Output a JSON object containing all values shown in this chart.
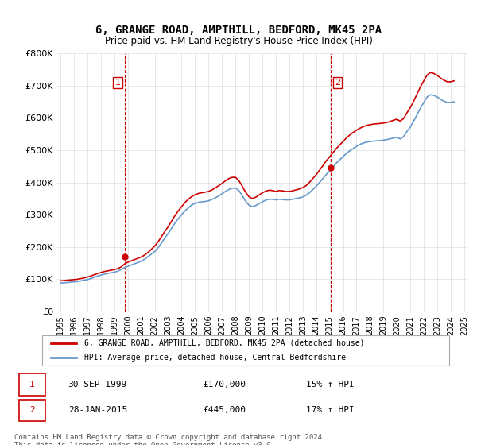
{
  "title": "6, GRANGE ROAD, AMPTHILL, BEDFORD, MK45 2PA",
  "subtitle": "Price paid vs. HM Land Registry's House Price Index (HPI)",
  "ylabel": "",
  "ylim": [
    0,
    800000
  ],
  "yticks": [
    0,
    100000,
    200000,
    300000,
    400000,
    500000,
    600000,
    700000,
    800000
  ],
  "ytick_labels": [
    "£0",
    "£100K",
    "£200K",
    "£300K",
    "£400K",
    "£500K",
    "£600K",
    "£700K",
    "£800K"
  ],
  "price_color": "#cc0000",
  "hpi_color": "#6699cc",
  "vline_color": "#cc0000",
  "background_color": "#ffffff",
  "grid_color": "#dddddd",
  "transaction1": {
    "date": "30-SEP-1999",
    "price": 170000,
    "label": "1",
    "hpi_pct": "15%"
  },
  "transaction2": {
    "date": "28-JAN-2015",
    "price": 445000,
    "label": "2",
    "hpi_pct": "17%"
  },
  "legend_label_price": "6, GRANGE ROAD, AMPTHILL, BEDFORD, MK45 2PA (detached house)",
  "legend_label_hpi": "HPI: Average price, detached house, Central Bedfordshire",
  "footer": "Contains HM Land Registry data © Crown copyright and database right 2024.\nThis data is licensed under the Open Government Licence v3.0.",
  "hpi_data": {
    "years": [
      1995.0,
      1995.25,
      1995.5,
      1995.75,
      1996.0,
      1996.25,
      1996.5,
      1996.75,
      1997.0,
      1997.25,
      1997.5,
      1997.75,
      1998.0,
      1998.25,
      1998.5,
      1998.75,
      1999.0,
      1999.25,
      1999.5,
      1999.75,
      2000.0,
      2000.25,
      2000.5,
      2000.75,
      2001.0,
      2001.25,
      2001.5,
      2001.75,
      2002.0,
      2002.25,
      2002.5,
      2002.75,
      2003.0,
      2003.25,
      2003.5,
      2003.75,
      2004.0,
      2004.25,
      2004.5,
      2004.75,
      2005.0,
      2005.25,
      2005.5,
      2005.75,
      2006.0,
      2006.25,
      2006.5,
      2006.75,
      2007.0,
      2007.25,
      2007.5,
      2007.75,
      2008.0,
      2008.25,
      2008.5,
      2008.75,
      2009.0,
      2009.25,
      2009.5,
      2009.75,
      2010.0,
      2010.25,
      2010.5,
      2010.75,
      2011.0,
      2011.25,
      2011.5,
      2011.75,
      2012.0,
      2012.25,
      2012.5,
      2012.75,
      2013.0,
      2013.25,
      2013.5,
      2013.75,
      2014.0,
      2014.25,
      2014.5,
      2014.75,
      2015.0,
      2015.25,
      2015.5,
      2015.75,
      2016.0,
      2016.25,
      2016.5,
      2016.75,
      2017.0,
      2017.25,
      2017.5,
      2017.75,
      2018.0,
      2018.25,
      2018.5,
      2018.75,
      2019.0,
      2019.25,
      2019.5,
      2019.75,
      2020.0,
      2020.25,
      2020.5,
      2020.75,
      2021.0,
      2021.25,
      2021.5,
      2021.75,
      2022.0,
      2022.25,
      2022.5,
      2022.75,
      2023.0,
      2023.25,
      2023.5,
      2023.75,
      2024.0,
      2024.25
    ],
    "values": [
      88000,
      89000,
      90000,
      91000,
      92000,
      93000,
      95000,
      97000,
      99000,
      102000,
      106000,
      110000,
      113000,
      116000,
      118000,
      120000,
      122000,
      125000,
      130000,
      136000,
      140000,
      144000,
      148000,
      152000,
      156000,
      162000,
      170000,
      178000,
      186000,
      198000,
      212000,
      228000,
      242000,
      258000,
      274000,
      288000,
      300000,
      312000,
      322000,
      330000,
      335000,
      338000,
      340000,
      341000,
      343000,
      347000,
      352000,
      358000,
      365000,
      372000,
      378000,
      382000,
      383000,
      375000,
      360000,
      342000,
      330000,
      325000,
      328000,
      334000,
      340000,
      345000,
      348000,
      348000,
      346000,
      348000,
      347000,
      346000,
      346000,
      348000,
      350000,
      352000,
      355000,
      360000,
      368000,
      378000,
      388000,
      400000,
      412000,
      425000,
      436000,
      448000,
      460000,
      470000,
      480000,
      490000,
      498000,
      505000,
      512000,
      518000,
      522000,
      525000,
      527000,
      528000,
      529000,
      530000,
      531000,
      533000,
      535000,
      538000,
      540000,
      535000,
      542000,
      558000,
      572000,
      590000,
      610000,
      630000,
      648000,
      665000,
      672000,
      670000,
      665000,
      658000,
      652000,
      648000,
      648000,
      650000
    ]
  },
  "price_data": {
    "years": [
      1995.0,
      1995.25,
      1995.5,
      1995.75,
      1996.0,
      1996.25,
      1996.5,
      1996.75,
      1997.0,
      1997.25,
      1997.5,
      1997.75,
      1998.0,
      1998.25,
      1998.5,
      1998.75,
      1999.0,
      1999.25,
      1999.5,
      1999.75,
      2000.0,
      2000.25,
      2000.5,
      2000.75,
      2001.0,
      2001.25,
      2001.5,
      2001.75,
      2002.0,
      2002.25,
      2002.5,
      2002.75,
      2003.0,
      2003.25,
      2003.5,
      2003.75,
      2004.0,
      2004.25,
      2004.5,
      2004.75,
      2005.0,
      2005.25,
      2005.5,
      2005.75,
      2006.0,
      2006.25,
      2006.5,
      2006.75,
      2007.0,
      2007.25,
      2007.5,
      2007.75,
      2008.0,
      2008.25,
      2008.5,
      2008.75,
      2009.0,
      2009.25,
      2009.5,
      2009.75,
      2010.0,
      2010.25,
      2010.5,
      2010.75,
      2011.0,
      2011.25,
      2011.5,
      2011.75,
      2012.0,
      2012.25,
      2012.5,
      2012.75,
      2013.0,
      2013.25,
      2013.5,
      2013.75,
      2014.0,
      2014.25,
      2014.5,
      2014.75,
      2015.0,
      2015.25,
      2015.5,
      2015.75,
      2016.0,
      2016.25,
      2016.5,
      2016.75,
      2017.0,
      2017.25,
      2017.5,
      2017.75,
      2018.0,
      2018.25,
      2018.5,
      2018.75,
      2019.0,
      2019.25,
      2019.5,
      2019.75,
      2020.0,
      2020.25,
      2020.5,
      2020.75,
      2021.0,
      2021.25,
      2021.5,
      2021.75,
      2022.0,
      2022.25,
      2022.5,
      2022.75,
      2023.0,
      2023.25,
      2023.5,
      2023.75,
      2024.0,
      2024.25
    ],
    "values": [
      95000,
      96000,
      97000,
      98000,
      99000,
      100000,
      102000,
      104000,
      107000,
      110000,
      114000,
      118000,
      121000,
      124000,
      126000,
      128000,
      130000,
      133000,
      138000,
      147000,
      153000,
      157000,
      161000,
      165000,
      169000,
      175000,
      183000,
      193000,
      203000,
      216000,
      232000,
      248000,
      263000,
      280000,
      297000,
      312000,
      325000,
      338000,
      348000,
      356000,
      362000,
      366000,
      368000,
      370000,
      372000,
      377000,
      383000,
      390000,
      397000,
      405000,
      412000,
      416000,
      416000,
      406000,
      389000,
      370000,
      356000,
      350000,
      354000,
      361000,
      368000,
      373000,
      376000,
      375000,
      372000,
      375000,
      374000,
      372000,
      372000,
      374000,
      377000,
      380000,
      384000,
      390000,
      400000,
      412000,
      424000,
      438000,
      452000,
      467000,
      479000,
      492000,
      505000,
      516000,
      527000,
      538000,
      547000,
      555000,
      562000,
      568000,
      573000,
      577000,
      579000,
      581000,
      582000,
      583000,
      584000,
      586000,
      589000,
      593000,
      596000,
      590000,
      598000,
      616000,
      632000,
      652000,
      674000,
      696000,
      715000,
      733000,
      741000,
      738000,
      732000,
      724000,
      717000,
      712000,
      712000,
      715000
    ]
  },
  "transaction1_year": 1999.75,
  "transaction1_price": 170000,
  "transaction2_year": 2015.083,
  "transaction2_price": 445000,
  "xlim_start": 1994.75,
  "xlim_end": 2025.25,
  "xtick_years": [
    1995,
    1996,
    1997,
    1998,
    1999,
    2000,
    2001,
    2002,
    2003,
    2004,
    2005,
    2006,
    2007,
    2008,
    2009,
    2010,
    2011,
    2012,
    2013,
    2014,
    2015,
    2016,
    2017,
    2018,
    2019,
    2020,
    2021,
    2022,
    2023,
    2024,
    2025
  ]
}
